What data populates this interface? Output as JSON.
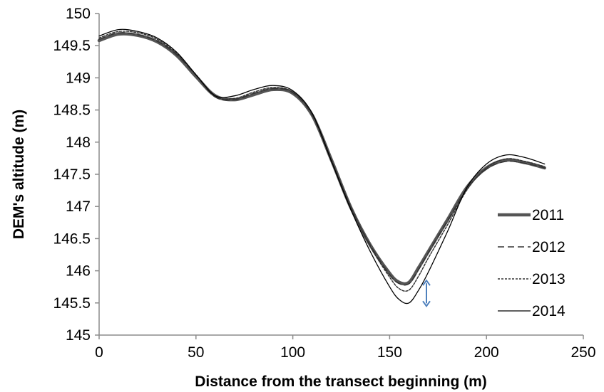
{
  "chart_data": {
    "type": "line",
    "title": "",
    "xlabel": "Distance from the transect beginning (m)",
    "ylabel": "DEM's altitude (m)",
    "xlim": [
      0,
      250
    ],
    "ylim": [
      145,
      150
    ],
    "x_ticks": [
      0,
      50,
      100,
      150,
      200,
      250
    ],
    "y_ticks": [
      145,
      145.5,
      146,
      146.5,
      147,
      147.5,
      148,
      148.5,
      149,
      149.5,
      150
    ],
    "grid": false,
    "legend_position": "right",
    "series": [
      {
        "name": "2011",
        "style": "thick-solid",
        "color": "#555555",
        "x": [
          0,
          10,
          20,
          30,
          40,
          50,
          60,
          70,
          80,
          90,
          100,
          110,
          120,
          130,
          140,
          150,
          155,
          160,
          165,
          170,
          180,
          190,
          200,
          210,
          220,
          230
        ],
        "y": [
          149.58,
          149.68,
          149.66,
          149.56,
          149.35,
          149.02,
          148.72,
          148.66,
          148.74,
          148.82,
          148.76,
          148.42,
          147.72,
          146.98,
          146.4,
          145.96,
          145.82,
          145.82,
          146.05,
          146.3,
          146.8,
          147.3,
          147.6,
          147.72,
          147.68,
          147.6
        ]
      },
      {
        "name": "2012",
        "style": "long-dash",
        "color": "#333333",
        "x": [
          0,
          10,
          20,
          30,
          40,
          50,
          60,
          70,
          80,
          90,
          100,
          110,
          120,
          130,
          140,
          150,
          155,
          160,
          165,
          170,
          180,
          190,
          200,
          210,
          220,
          230
        ],
        "y": [
          149.6,
          149.7,
          149.67,
          149.57,
          149.36,
          149.04,
          148.7,
          148.66,
          148.76,
          148.83,
          148.77,
          148.42,
          147.7,
          146.98,
          146.4,
          145.94,
          145.8,
          145.8,
          146.02,
          146.28,
          146.78,
          147.28,
          147.58,
          147.7,
          147.67,
          147.6
        ]
      },
      {
        "name": "2013",
        "style": "short-dash",
        "color": "#333333",
        "x": [
          0,
          10,
          20,
          30,
          40,
          50,
          60,
          70,
          80,
          90,
          100,
          110,
          120,
          130,
          140,
          150,
          155,
          160,
          165,
          170,
          180,
          190,
          200,
          210,
          220,
          230
        ],
        "y": [
          149.62,
          149.72,
          149.7,
          149.6,
          149.38,
          149.05,
          148.71,
          148.68,
          148.78,
          148.85,
          148.78,
          148.44,
          147.72,
          146.99,
          146.38,
          145.9,
          145.72,
          145.7,
          145.92,
          146.2,
          146.72,
          147.26,
          147.6,
          147.74,
          147.7,
          147.62
        ]
      },
      {
        "name": "2014",
        "style": "thin-solid",
        "color": "#000000",
        "x": [
          0,
          10,
          20,
          30,
          40,
          50,
          60,
          70,
          80,
          90,
          100,
          110,
          120,
          130,
          140,
          150,
          155,
          160,
          165,
          170,
          180,
          190,
          200,
          210,
          220,
          230
        ],
        "y": [
          149.65,
          149.75,
          149.72,
          149.62,
          149.4,
          149.05,
          148.72,
          148.72,
          148.82,
          148.88,
          148.8,
          148.45,
          147.7,
          146.95,
          146.3,
          145.75,
          145.55,
          145.5,
          145.7,
          145.98,
          146.62,
          147.3,
          147.66,
          147.8,
          147.76,
          147.66
        ]
      }
    ],
    "annotation": {
      "type": "double-arrow",
      "color": "#4f81bd",
      "x": 169,
      "y_from": 145.45,
      "y_to": 145.85
    }
  }
}
